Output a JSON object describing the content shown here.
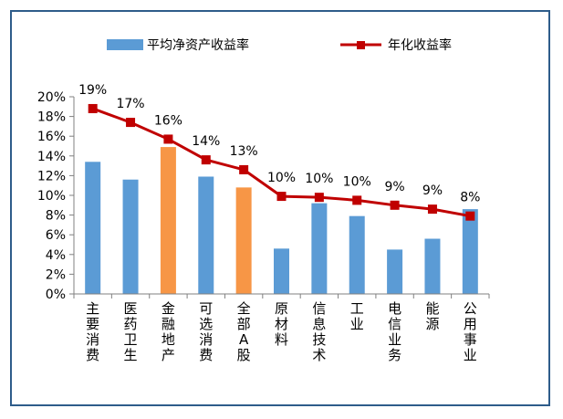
{
  "chart_data": {
    "type": "bar",
    "title": "",
    "xlabel": "",
    "ylabel": "",
    "ylim": [
      0,
      20
    ],
    "y_unit": "%",
    "yticks": [
      "0%",
      "2%",
      "4%",
      "6%",
      "8%",
      "10%",
      "12%",
      "14%",
      "16%",
      "18%",
      "20%"
    ],
    "categories": [
      "主要消费",
      "医药卫生",
      "金融地产",
      "可选消费",
      "全部A股",
      "原材料",
      "信息技术",
      "工业",
      "电信业务",
      "能源",
      "公用事业"
    ],
    "series": [
      {
        "name": "平均净资产收益率",
        "type": "bar",
        "values": [
          13.4,
          11.6,
          14.9,
          11.9,
          10.8,
          4.6,
          9.2,
          7.9,
          4.5,
          5.6,
          8.6
        ],
        "colors": [
          "#5b9bd5",
          "#5b9bd5",
          "#f79646",
          "#5b9bd5",
          "#f79646",
          "#5b9bd5",
          "#5b9bd5",
          "#5b9bd5",
          "#5b9bd5",
          "#5b9bd5",
          "#5b9bd5"
        ]
      },
      {
        "name": "年化收益率",
        "type": "line",
        "values": [
          18.8,
          17.4,
          15.7,
          13.6,
          12.6,
          9.9,
          9.8,
          9.5,
          9.0,
          8.6,
          7.9
        ],
        "labels": [
          "19%",
          "17%",
          "16%",
          "14%",
          "13%",
          "10%",
          "10%",
          "10%",
          "9%",
          "9%",
          "8%"
        ],
        "color": "#c00000"
      }
    ],
    "legend_position": "top"
  }
}
